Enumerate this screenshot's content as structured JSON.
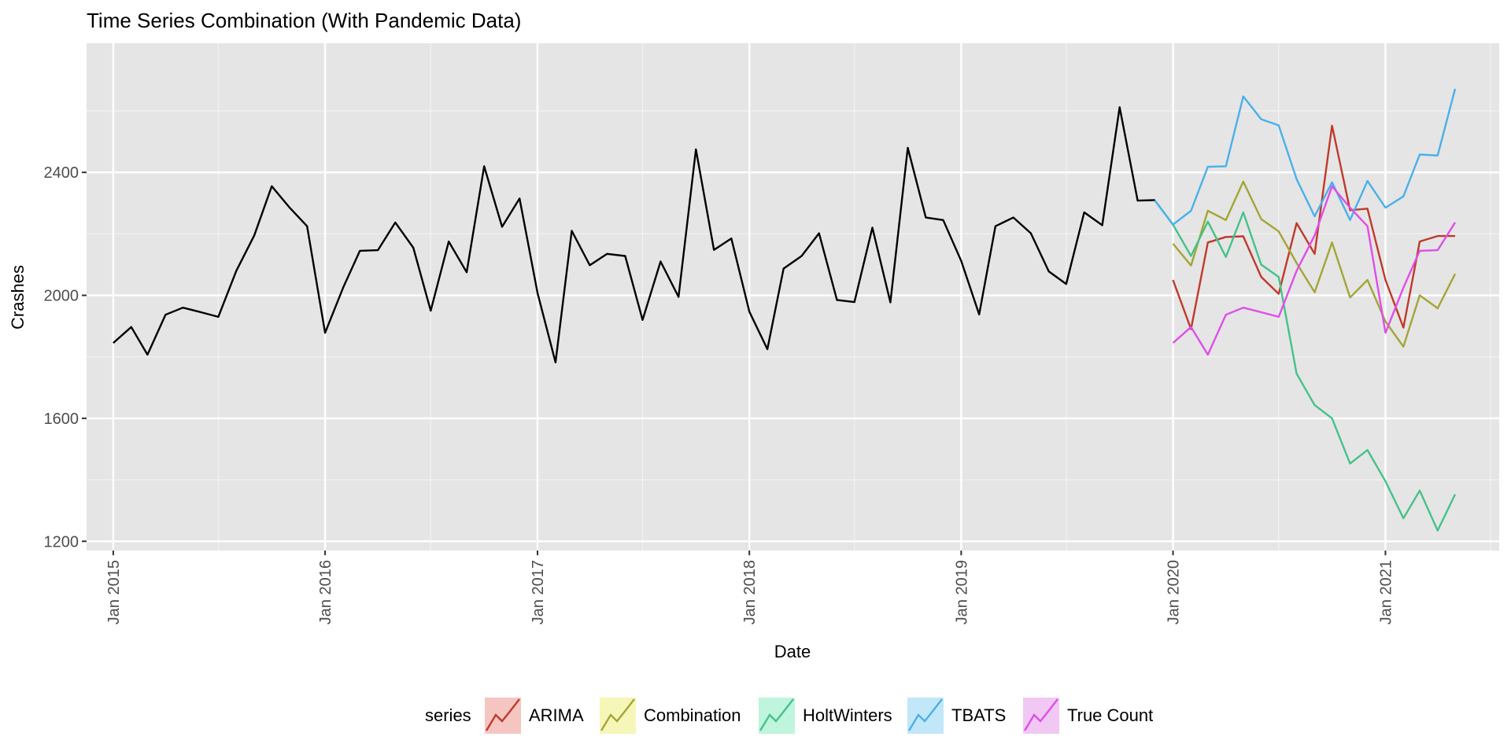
{
  "chart_data": {
    "type": "line",
    "title": "Time Series Combination (With Pandemic Data)",
    "xlabel": "Date",
    "ylabel": "Crashes",
    "x_range": [
      "2014-11-16",
      "2021-07-16"
    ],
    "ylim": [
      1170,
      2820
    ],
    "y_ticks": [
      1200,
      1600,
      2000,
      2400
    ],
    "x_ticks": [
      {
        "date": "2015-01-01",
        "label": "Jan 2015"
      },
      {
        "date": "2016-01-01",
        "label": "Jan 2016"
      },
      {
        "date": "2017-01-01",
        "label": "Jan 2017"
      },
      {
        "date": "2018-01-01",
        "label": "Jan 2018"
      },
      {
        "date": "2019-01-01",
        "label": "Jan 2019"
      },
      {
        "date": "2020-01-01",
        "label": "Jan 2020"
      },
      {
        "date": "2021-01-01",
        "label": "Jan 2021"
      }
    ],
    "x_minor_ticks": [
      "2015-07-01",
      "2016-07-01",
      "2017-07-01",
      "2018-07-01",
      "2019-07-01",
      "2020-07-01",
      "2021-07-01"
    ],
    "grid": true,
    "legend": {
      "title": "series",
      "position": "bottom"
    },
    "history": {
      "start": "2015-01",
      "color": "#000000",
      "values": [
        1845,
        1897,
        1807,
        1937,
        1960,
        1945,
        1930,
        2080,
        2195,
        2355,
        2285,
        2225,
        1878,
        2025,
        2145,
        2147,
        2237,
        2155,
        1950,
        2175,
        2075,
        2420,
        2223,
        2315,
        2008,
        1782,
        2210,
        2098,
        2135,
        2128,
        1920,
        2110,
        1995,
        2475,
        2148,
        2185,
        1947,
        1825,
        2087,
        2128,
        2202,
        1985,
        1978,
        2220,
        1977,
        2480,
        2253,
        2245,
        2112,
        1938,
        2225,
        2253,
        2202,
        2078,
        2037,
        2270,
        2228,
        2612,
        2308,
        2310
      ]
    },
    "series": [
      {
        "name": "ARIMA",
        "color": "#c0392b",
        "legend_fill": "#f5c6c1",
        "start": "2020-01",
        "values": [
          2050,
          1890,
          2172,
          2190,
          2192,
          2060,
          2005,
          2235,
          2135,
          2552,
          2277,
          2282,
          2050,
          1895,
          2175,
          2193,
          2193
        ]
      },
      {
        "name": "Combination",
        "color": "#a3a535",
        "legend_fill": "#f6f6b8",
        "start": "2020-01",
        "values": [
          2168,
          2097,
          2275,
          2245,
          2370,
          2248,
          2208,
          2105,
          2010,
          2172,
          1993,
          2050,
          1915,
          1833,
          2000,
          1958,
          2070
        ]
      },
      {
        "name": "HoltWinters",
        "color": "#45c28a",
        "legend_fill": "#bff5dc",
        "start": "2019-12",
        "values": [
          2308,
          2230,
          2128,
          2240,
          2125,
          2270,
          2100,
          2060,
          1745,
          1643,
          1600,
          1453,
          1497,
          1395,
          1275,
          1365,
          1235,
          1353
        ]
      },
      {
        "name": "TBATS",
        "color": "#4ab0e9",
        "legend_fill": "#c1e7f8",
        "start": "2019-12",
        "values": [
          2308,
          2230,
          2275,
          2418,
          2420,
          2647,
          2573,
          2553,
          2378,
          2257,
          2368,
          2245,
          2372,
          2285,
          2322,
          2458,
          2455,
          2672
        ]
      },
      {
        "name": "True Count",
        "color": "#de4ee8",
        "legend_fill": "#f0c8f3",
        "start": "2020-01",
        "values": [
          1845,
          1897,
          1807,
          1937,
          1960,
          1945,
          1930,
          2080,
          2195,
          2355,
          2285,
          2225,
          1878,
          2025,
          2145,
          2147,
          2237
        ]
      }
    ]
  }
}
